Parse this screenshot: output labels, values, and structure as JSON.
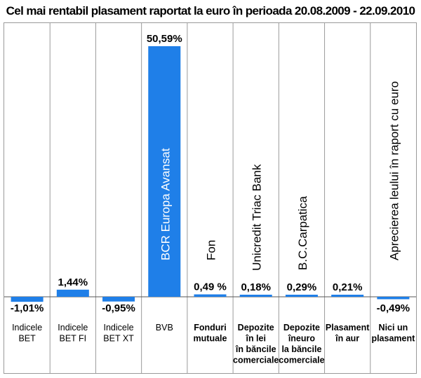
{
  "chart_data": {
    "type": "bar",
    "title": "Cel mai rentabil plasament raportat la euro în perioada 20.08.2009 - 22.09.2010",
    "categories": [
      [
        "Indicele",
        "BET"
      ],
      [
        "Indicele",
        "BET FI"
      ],
      [
        "Indicele",
        "BET XT"
      ],
      [
        "BVB"
      ],
      [
        "Fonduri",
        "mutuale"
      ],
      [
        "Depozite",
        "în lei",
        "în băncile",
        "comerciale"
      ],
      [
        "Depozite",
        "îneuro",
        "la băncile",
        "comerciale"
      ],
      [
        "Plasament",
        "în aur"
      ],
      [
        "Nici un",
        "plasament"
      ]
    ],
    "values": [
      -1.01,
      1.44,
      -0.95,
      50.59,
      0.49,
      0.18,
      0.29,
      0.21,
      -0.49
    ],
    "value_labels": [
      "-1,01%",
      "1,44%",
      "-0,95%",
      "50,59%",
      "0,49 %",
      "0,18%",
      "0,29%",
      "0,21%",
      "-0,49%"
    ],
    "bar_names": [
      "",
      "",
      "",
      "BCR Europa Avansat",
      "Fon",
      "Unicredit Triac Bank",
      "B.C.Carpatica",
      "",
      "Aprecierea leului în raport cu euro"
    ],
    "bar_color": "#1f7fe8",
    "ylim": [
      -1.5,
      51
    ],
    "grid": false
  }
}
